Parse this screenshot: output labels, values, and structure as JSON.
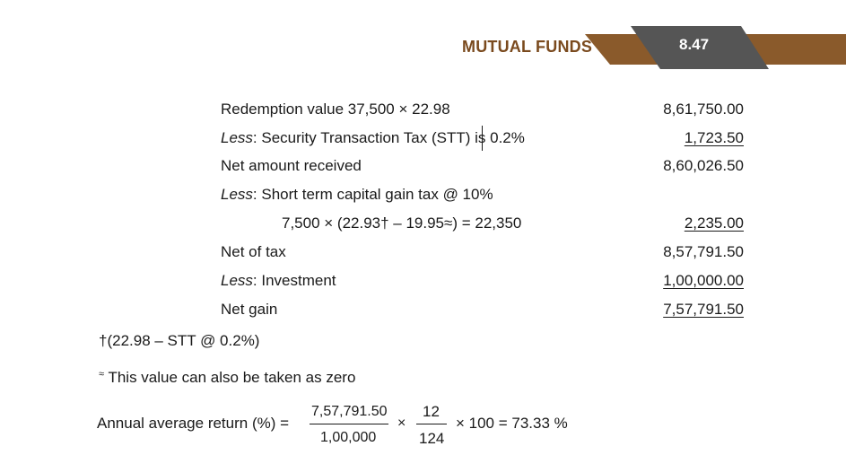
{
  "header": {
    "title": "MUTUAL FUNDS",
    "page_number": "8.47",
    "colors": {
      "title": "#7a4a1e",
      "band": "#8a5a2b",
      "tab": "#555555"
    }
  },
  "rows": [
    {
      "label": "Redemption value 37,500 × 22.98",
      "amount": "8,61,750.00"
    },
    {
      "label_em": "Less",
      "label_rest": ": Security Transaction Tax (STT) is 0.2%",
      "amount": "1,723.50"
    },
    {
      "label": "Net amount received",
      "amount": "8,60,026.50"
    },
    {
      "label_em": "Less",
      "label_rest": ": Short term capital gain tax @ 10%",
      "amount": ""
    },
    {
      "label": "7,500 × (22.93† – 19.95≈) = 22,350",
      "amount": "2,235.00"
    },
    {
      "label": "Net of tax",
      "amount": "8,57,791.50"
    },
    {
      "label_em": "Less",
      "label_rest": ": Investment",
      "amount": "1,00,000.00"
    },
    {
      "label": "Net gain",
      "amount": "7,57,791.50"
    }
  ],
  "footnotes": {
    "dagger": "†(22.98 – STT @ 0.2%)",
    "approx_symbol": "≈",
    "approx_text": "This value can also be taken as zero"
  },
  "formula": {
    "label": "Annual average return (%)  =",
    "num1": "7,57,791.50",
    "den1": "1,00,000",
    "times1": "×",
    "num2": "12",
    "den2": "124",
    "tail": "× 100  =  73.33  %"
  }
}
